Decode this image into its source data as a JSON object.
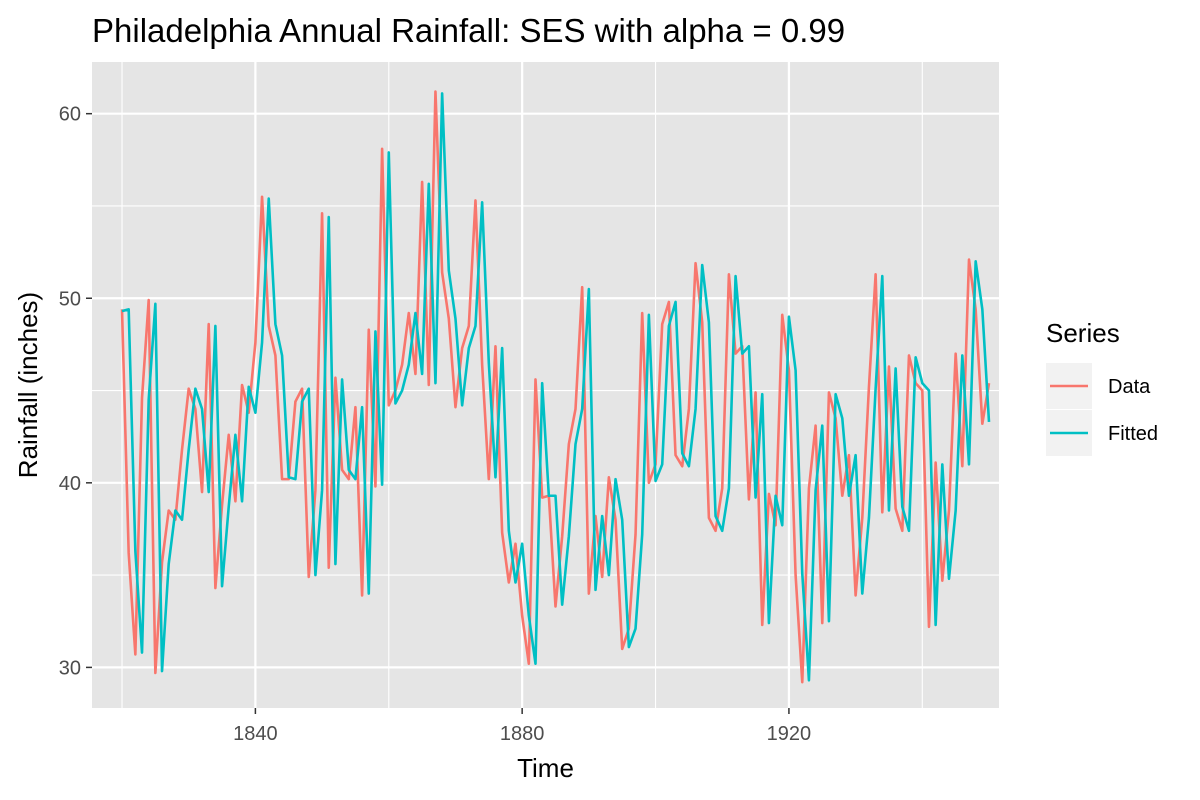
{
  "chart_data": {
    "type": "line",
    "title": "Philadelphia Annual Rainfall: SES with alpha = 0.99",
    "xlabel": "Time",
    "ylabel": "Rainfall (inches)",
    "xlim": [
      1815.5,
      1951.5
    ],
    "ylim": [
      27.8,
      62.8
    ],
    "x_ticks": [
      {
        "value": 1840,
        "label": "1840"
      },
      {
        "value": 1880,
        "label": "1880"
      },
      {
        "value": 1920,
        "label": "1920"
      }
    ],
    "y_ticks": [
      {
        "value": 30,
        "label": "30"
      },
      {
        "value": 40,
        "label": "40"
      },
      {
        "value": 50,
        "label": "50"
      },
      {
        "value": 60,
        "label": "60"
      }
    ],
    "grid": true,
    "background_color": "#e5e5e5",
    "legend": {
      "title": "Series",
      "position": "right",
      "entries": [
        {
          "label": "Data",
          "color": "#f8766d"
        },
        {
          "label": "Fitted",
          "color": "#00bfc4"
        }
      ]
    },
    "x": [
      1820,
      1821,
      1822,
      1823,
      1824,
      1825,
      1826,
      1827,
      1828,
      1829,
      1830,
      1831,
      1832,
      1833,
      1834,
      1835,
      1836,
      1837,
      1838,
      1839,
      1840,
      1841,
      1842,
      1843,
      1844,
      1845,
      1846,
      1847,
      1848,
      1849,
      1850,
      1851,
      1852,
      1853,
      1854,
      1855,
      1856,
      1857,
      1858,
      1859,
      1860,
      1861,
      1862,
      1863,
      1864,
      1865,
      1866,
      1867,
      1868,
      1869,
      1870,
      1871,
      1872,
      1873,
      1874,
      1875,
      1876,
      1877,
      1878,
      1879,
      1880,
      1881,
      1882,
      1883,
      1884,
      1885,
      1886,
      1887,
      1888,
      1889,
      1890,
      1891,
      1892,
      1893,
      1894,
      1895,
      1896,
      1897,
      1898,
      1899,
      1900,
      1901,
      1902,
      1903,
      1904,
      1905,
      1906,
      1907,
      1908,
      1909,
      1910,
      1911,
      1912,
      1913,
      1914,
      1915,
      1916,
      1917,
      1918,
      1919,
      1920,
      1921,
      1922,
      1923,
      1924,
      1925,
      1926,
      1927,
      1928,
      1929,
      1930,
      1931,
      1932,
      1933,
      1934,
      1935,
      1936,
      1937,
      1938,
      1939,
      1940,
      1941,
      1942,
      1943,
      1944,
      1945,
      1946,
      1947,
      1948,
      1949,
      1950
    ],
    "series": [
      {
        "name": "Data",
        "color": "#f8766d",
        "values": [
          49.4,
          36.2,
          30.7,
          44.6,
          49.9,
          29.7,
          35.7,
          38.5,
          38.0,
          41.8,
          45.1,
          44.0,
          39.5,
          48.6,
          34.3,
          38.8,
          42.6,
          39.0,
          45.3,
          43.8,
          47.6,
          55.5,
          48.5,
          46.9,
          40.2,
          40.2,
          44.4,
          45.1,
          34.9,
          39.6,
          54.6,
          35.4,
          45.7,
          40.7,
          40.2,
          44.1,
          33.9,
          48.3,
          39.8,
          58.1,
          44.2,
          45.0,
          46.4,
          49.2,
          45.9,
          56.3,
          45.3,
          61.2,
          51.4,
          48.9,
          44.1,
          47.3,
          48.5,
          55.3,
          46.4,
          40.2,
          47.4,
          37.3,
          34.6,
          36.7,
          32.8,
          30.2,
          45.6,
          39.2,
          39.3,
          33.3,
          37.1,
          42.1,
          44.0,
          50.6,
          34.0,
          38.2,
          34.9,
          40.3,
          38.0,
          31.0,
          32.1,
          37.2,
          49.2,
          40.0,
          41.0,
          48.6,
          49.8,
          41.5,
          40.9,
          44.0,
          51.9,
          48.7,
          38.1,
          37.4,
          39.7,
          51.3,
          47.0,
          47.4,
          39.1,
          44.9,
          32.3,
          39.4,
          37.7,
          49.1,
          46.1,
          35.0,
          29.2,
          39.7,
          43.1,
          32.4,
          44.9,
          43.5,
          39.3,
          41.5,
          33.9,
          38.1,
          45.2,
          51.3,
          38.4,
          46.3,
          38.6,
          37.4,
          46.9,
          45.4,
          45.0,
          32.2,
          41.1,
          34.7,
          38.5,
          47.0,
          40.9,
          52.1,
          49.4,
          43.2,
          45.4
        ]
      },
      {
        "name": "Fitted",
        "color": "#00bfc4",
        "values": [
          49.3,
          49.4,
          36.3,
          30.8,
          44.5,
          49.7,
          29.8,
          35.6,
          38.5,
          38.0,
          41.8,
          45.1,
          44.0,
          39.5,
          48.5,
          34.4,
          38.7,
          42.6,
          39.0,
          45.2,
          43.8,
          47.6,
          55.4,
          48.6,
          46.9,
          40.3,
          40.2,
          44.4,
          45.1,
          35.0,
          39.6,
          54.4,
          35.6,
          45.6,
          40.7,
          40.2,
          44.1,
          34.0,
          48.2,
          39.9,
          57.9,
          44.3,
          45.0,
          46.4,
          49.2,
          45.9,
          56.2,
          45.4,
          61.1,
          51.5,
          48.9,
          44.2,
          47.3,
          48.5,
          55.2,
          46.5,
          40.3,
          47.3,
          37.4,
          34.6,
          36.7,
          32.8,
          30.2,
          45.4,
          39.3,
          39.3,
          33.4,
          37.1,
          42.1,
          44.0,
          50.5,
          34.2,
          38.2,
          35.0,
          40.2,
          38.0,
          31.1,
          32.1,
          37.2,
          49.1,
          40.1,
          41.0,
          48.5,
          49.8,
          41.6,
          40.9,
          44.0,
          51.8,
          48.7,
          38.2,
          37.4,
          39.7,
          51.2,
          47.0,
          47.4,
          39.2,
          44.8,
          32.4,
          39.3,
          37.7,
          49.0,
          46.1,
          35.1,
          29.3,
          39.6,
          43.1,
          32.5,
          44.8,
          43.5,
          39.3,
          41.5,
          34.0,
          38.1,
          45.1,
          51.2,
          38.5,
          46.2,
          38.7,
          37.4,
          46.8,
          45.4,
          45.0,
          32.3,
          41.0,
          34.8,
          38.5,
          46.9,
          41.0,
          52.0,
          49.4,
          43.3
        ]
      }
    ]
  }
}
